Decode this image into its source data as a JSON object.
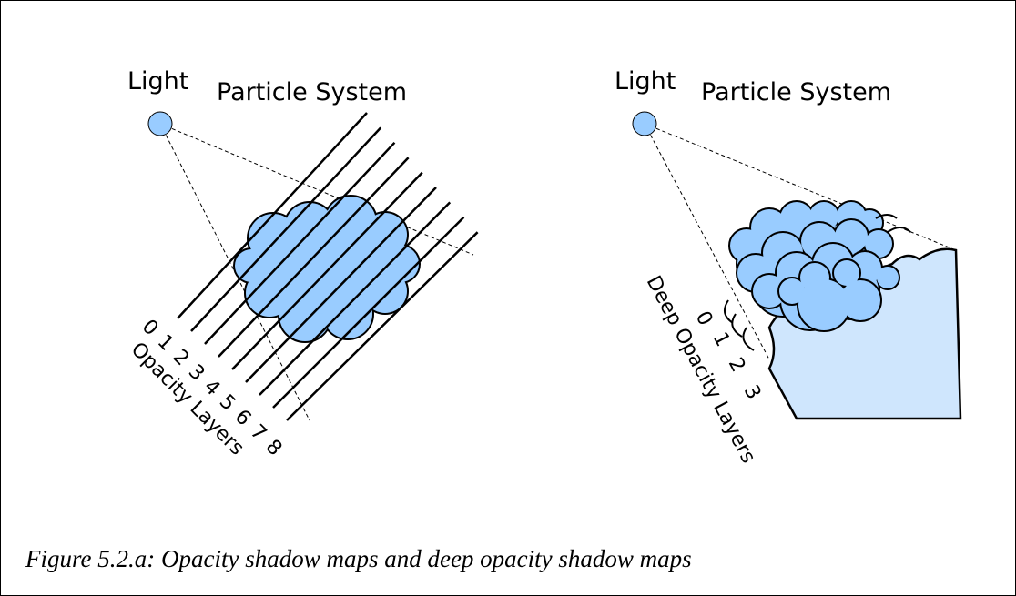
{
  "left": {
    "light": "Light",
    "system": "Particle System",
    "layers": [
      0,
      1,
      2,
      3,
      4,
      5,
      6,
      7,
      8
    ],
    "layers_label": "Opacity Layers"
  },
  "right": {
    "light": "Light",
    "system": "Particle System",
    "layers": [
      0,
      1,
      2,
      3
    ],
    "layers_label": "Deep Opacity Layers"
  },
  "caption": "Figure 5.2.a: Opacity shadow maps and deep opacity shadow maps"
}
